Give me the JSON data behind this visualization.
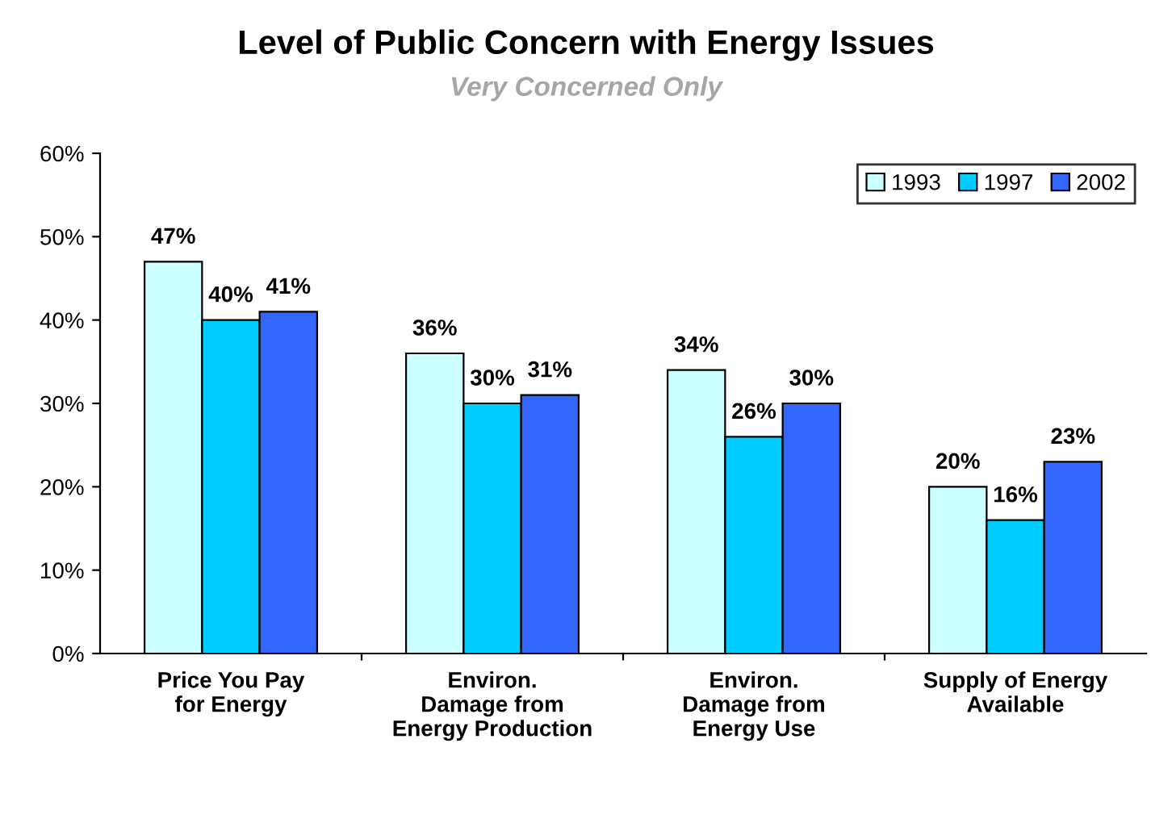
{
  "chart_data": {
    "type": "bar",
    "title": "Level of Public Concern with Energy Issues",
    "subtitle": "Very Concerned Only",
    "categories": [
      "Price You Pay\nfor Energy",
      "Environ.\nDamage from\nEnergy Production",
      "Environ.\nDamage from\nEnergy Use",
      "Supply of Energy\nAvailable"
    ],
    "series": [
      {
        "name": "1993",
        "color": "#ccffff",
        "values": [
          47,
          36,
          34,
          20
        ],
        "value_labels": [
          "47%",
          "36%",
          "34%",
          "20%"
        ]
      },
      {
        "name": "1997",
        "color": "#00ccff",
        "values": [
          40,
          30,
          26,
          16
        ],
        "value_labels": [
          "40%",
          "30%",
          "26%",
          "16%"
        ]
      },
      {
        "name": "2002",
        "color": "#3366ff",
        "values": [
          41,
          31,
          30,
          23
        ],
        "value_labels": [
          "41%",
          "31%",
          "30%",
          "23%"
        ]
      }
    ],
    "ylim": [
      0,
      60
    ],
    "yticks": [
      {
        "value": 0,
        "label": "0%"
      },
      {
        "value": 10,
        "label": "10%"
      },
      {
        "value": 20,
        "label": "20%"
      },
      {
        "value": 30,
        "label": "30%"
      },
      {
        "value": 40,
        "label": "40%"
      },
      {
        "value": 50,
        "label": "50%"
      },
      {
        "value": 60,
        "label": "60%"
      }
    ],
    "grid": false,
    "legend": "top right"
  }
}
